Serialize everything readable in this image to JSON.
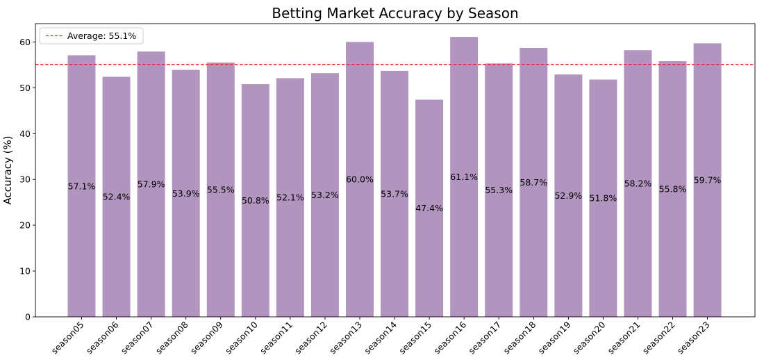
{
  "chart_data": {
    "type": "bar",
    "title": "Betting Market Accuracy by Season",
    "xlabel": "",
    "ylabel": "Accuracy (%)",
    "categories": [
      "season05",
      "season06",
      "season07",
      "season08",
      "season09",
      "season10",
      "season11",
      "season12",
      "season13",
      "season14",
      "season15",
      "season16",
      "season17",
      "season18",
      "season19",
      "season20",
      "season21",
      "season22",
      "season23"
    ],
    "values": [
      57.1,
      52.4,
      57.9,
      53.9,
      55.5,
      50.8,
      52.1,
      53.2,
      60.0,
      53.7,
      47.4,
      61.1,
      55.3,
      58.7,
      52.9,
      51.8,
      58.2,
      55.8,
      59.7
    ],
    "value_labels": [
      "57.1%",
      "52.4%",
      "57.9%",
      "53.9%",
      "55.5%",
      "50.8%",
      "52.1%",
      "53.2%",
      "60.0%",
      "53.7%",
      "47.4%",
      "61.1%",
      "55.3%",
      "58.7%",
      "52.9%",
      "51.8%",
      "58.2%",
      "55.8%",
      "59.7%"
    ],
    "average": 55.1,
    "average_label": "Average: 55.1%",
    "ylim": [
      0,
      64
    ],
    "yticks": [
      0,
      10,
      20,
      30,
      40,
      50,
      60
    ],
    "grid": false,
    "legend_position": "top-left",
    "bar_color": "#b195bf",
    "average_line_color": "#e8262a"
  }
}
